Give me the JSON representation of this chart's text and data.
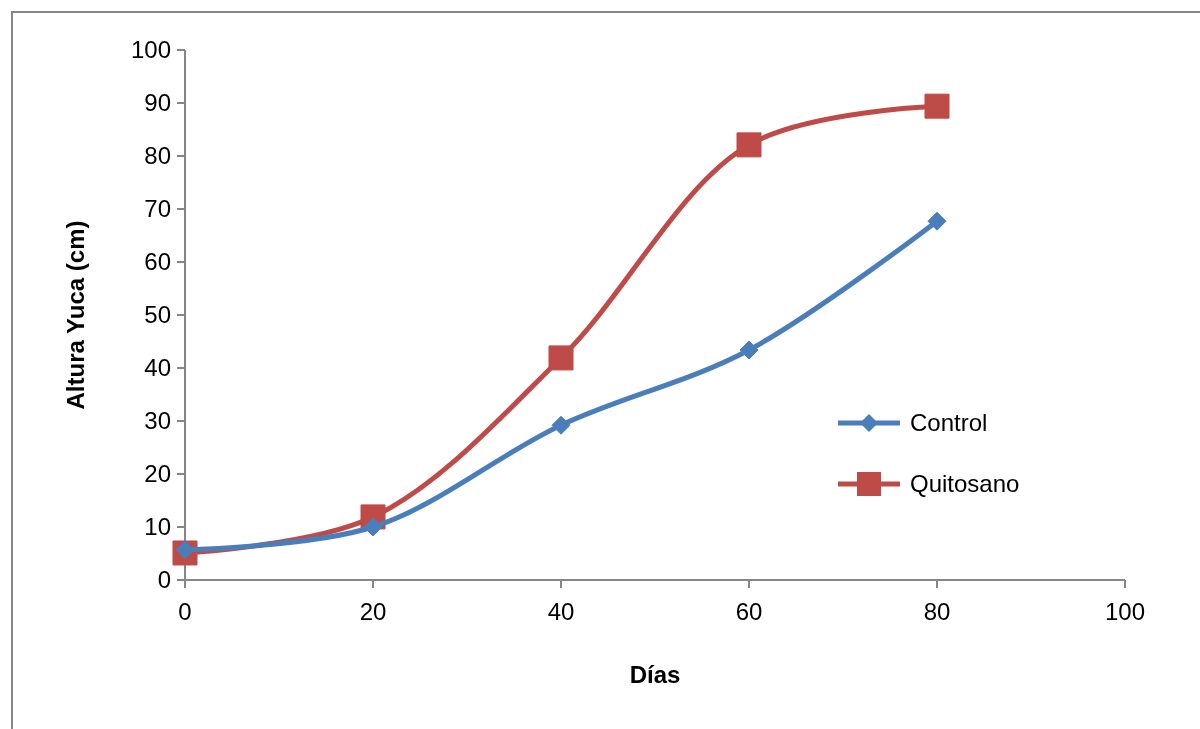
{
  "chart_data": {
    "type": "line",
    "xlabel": "Días",
    "ylabel": "Altura Yuca (cm)",
    "x": [
      0,
      20,
      40,
      60,
      80
    ],
    "series": [
      {
        "name": "Control",
        "color": "#4a7ebb",
        "marker": "diamond",
        "values": [
          5.7,
          10,
          29.2,
          43.4,
          67.7
        ]
      },
      {
        "name": "Quitosano",
        "color": "#be4b48",
        "marker": "square",
        "values": [
          5.1,
          11.9,
          41.9,
          82.1,
          89.4
        ]
      }
    ],
    "xlim": [
      0,
      100
    ],
    "xticks": [
      0,
      20,
      40,
      60,
      80,
      100
    ],
    "ylim": [
      0,
      100
    ],
    "yticks": [
      0,
      10,
      20,
      30,
      40,
      50,
      60,
      70,
      80,
      90,
      100
    ],
    "grid": false,
    "legend": "right",
    "line_style": "solid"
  }
}
